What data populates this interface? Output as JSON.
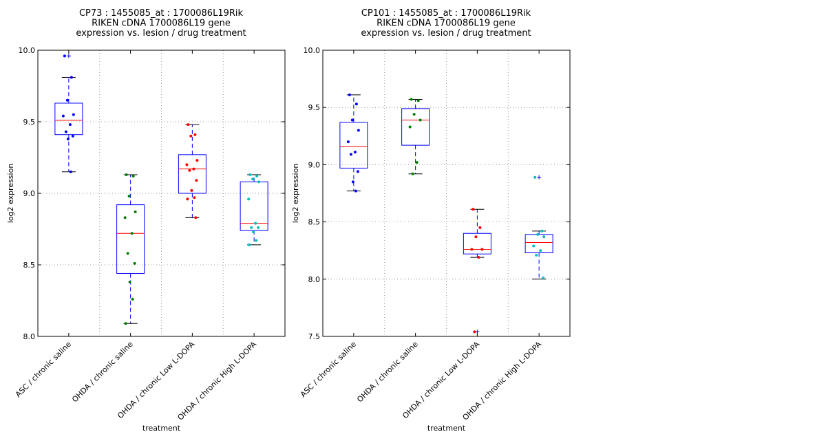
{
  "chart_data": [
    {
      "type": "box",
      "title": [
        "CP73 : 1455085_at : 1700086L19Rik",
        "RIKEN cDNA 1700086L19 gene",
        "expression vs. lesion / drug treatment"
      ],
      "xlabel": "treatment",
      "ylabel": "log2 expression",
      "ylim": [
        8.0,
        10.0
      ],
      "yticks": [
        "8.0",
        "8.5",
        "9.0",
        "9.5",
        "10.0"
      ],
      "grid": true,
      "categories": [
        "ASC / chronic saline",
        "OHDA / chronic saline",
        "OHDA / chronic Low L-DOPA",
        "OHDA / chronic High L-DOPA"
      ],
      "colors": [
        "#0000ff",
        "#008000",
        "#ff0000",
        "#00bfbf"
      ],
      "boxes": [
        {
          "whisker_low": 9.15,
          "q1": 9.41,
          "median": 9.51,
          "q3": 9.63,
          "whisker_high": 9.81,
          "outliers": [
            9.96
          ]
        },
        {
          "whisker_low": 8.09,
          "q1": 8.44,
          "median": 8.72,
          "q3": 8.92,
          "whisker_high": 9.13,
          "outliers": []
        },
        {
          "whisker_low": 8.83,
          "q1": 9.0,
          "median": 9.17,
          "q3": 9.27,
          "whisker_high": 9.48,
          "outliers": []
        },
        {
          "whisker_low": 8.64,
          "q1": 8.74,
          "median": 8.79,
          "q3": 9.08,
          "whisker_high": 9.13,
          "outliers": []
        }
      ],
      "points": [
        [
          9.96,
          9.81,
          9.65,
          9.55,
          9.54,
          9.48,
          9.43,
          9.4,
          9.38,
          9.15
        ],
        [
          9.13,
          9.12,
          8.98,
          8.87,
          8.83,
          8.72,
          8.58,
          8.51,
          8.38,
          8.26,
          8.09
        ],
        [
          9.48,
          9.41,
          9.4,
          9.23,
          9.2,
          9.17,
          9.16,
          9.09,
          9.02,
          8.97,
          8.96,
          8.83
        ],
        [
          9.13,
          9.12,
          9.1,
          9.08,
          8.96,
          8.79,
          8.76,
          8.76,
          8.73,
          8.67,
          8.64
        ]
      ]
    },
    {
      "type": "box",
      "title": [
        "CP101 : 1455085_at : 1700086L19Rik",
        "RIKEN cDNA 1700086L19 gene",
        "expression vs. lesion / drug treatment"
      ],
      "xlabel": "treatment",
      "ylabel": "log2 expression",
      "ylim": [
        7.5,
        10.0
      ],
      "yticks": [
        "7.5",
        "8.0",
        "8.5",
        "9.0",
        "9.5",
        "10.0"
      ],
      "grid": true,
      "categories": [
        "ASC / chronic saline",
        "OHDA / chronic saline",
        "OHDA / chronic Low L-DOPA",
        "OHDA / chronic High L-DOPA"
      ],
      "colors": [
        "#0000ff",
        "#008000",
        "#ff0000",
        "#00bfbf"
      ],
      "boxes": [
        {
          "whisker_low": 8.77,
          "q1": 8.97,
          "median": 9.16,
          "q3": 9.37,
          "whisker_high": 9.61,
          "outliers": []
        },
        {
          "whisker_low": 8.92,
          "q1": 9.17,
          "median": 9.39,
          "q3": 9.49,
          "whisker_high": 9.57,
          "outliers": []
        },
        {
          "whisker_low": 8.19,
          "q1": 8.22,
          "median": 8.26,
          "q3": 8.4,
          "whisker_high": 8.61,
          "outliers": [
            7.54
          ]
        },
        {
          "whisker_low": 8.0,
          "q1": 8.23,
          "median": 8.32,
          "q3": 8.39,
          "whisker_high": 8.42,
          "outliers": [
            8.89
          ]
        }
      ],
      "points": [
        [
          9.61,
          9.53,
          9.39,
          9.3,
          9.2,
          9.11,
          9.09,
          8.94,
          8.85,
          8.77
        ],
        [
          9.57,
          9.56,
          9.44,
          9.39,
          9.33,
          9.02,
          8.92
        ],
        [
          8.61,
          8.45,
          8.37,
          8.26,
          8.26,
          8.19,
          7.54
        ],
        [
          8.89,
          8.42,
          8.39,
          8.37,
          8.29,
          8.25,
          8.21,
          8.01
        ]
      ]
    }
  ]
}
